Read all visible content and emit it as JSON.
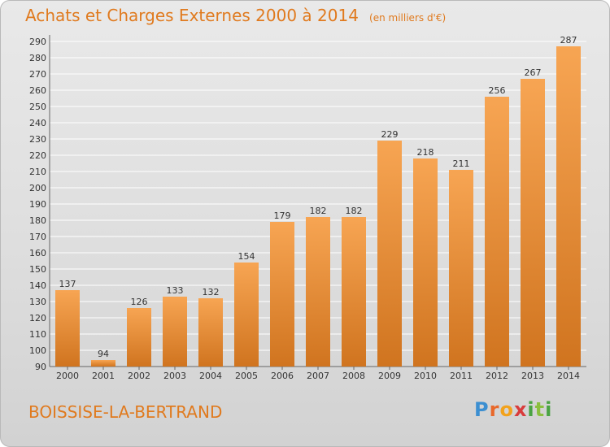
{
  "header": {
    "title": "Achats et Charges Externes 2000 à 2014",
    "unit": "(en milliers d'€)"
  },
  "footer": {
    "commune": "BOISSISE-LA-BERTRAND",
    "brand": "Proxiti"
  },
  "colors": {
    "title": "#e07a1e",
    "bar_light": "#f7a553",
    "bar_dark": "#d0741f",
    "grid": "#ffffff"
  },
  "chart_data": {
    "type": "bar",
    "title": "Achats et Charges Externes 2000 à 2014",
    "categories": [
      "2000",
      "2001",
      "2002",
      "2003",
      "2004",
      "2005",
      "2006",
      "2007",
      "2008",
      "2009",
      "2010",
      "2011",
      "2012",
      "2013",
      "2014"
    ],
    "values": [
      137,
      94,
      126,
      133,
      132,
      154,
      179,
      182,
      182,
      229,
      218,
      211,
      256,
      267,
      287
    ],
    "ylim": [
      90,
      290
    ],
    "ytick_step": 10,
    "grid": true,
    "data_labels": true
  }
}
